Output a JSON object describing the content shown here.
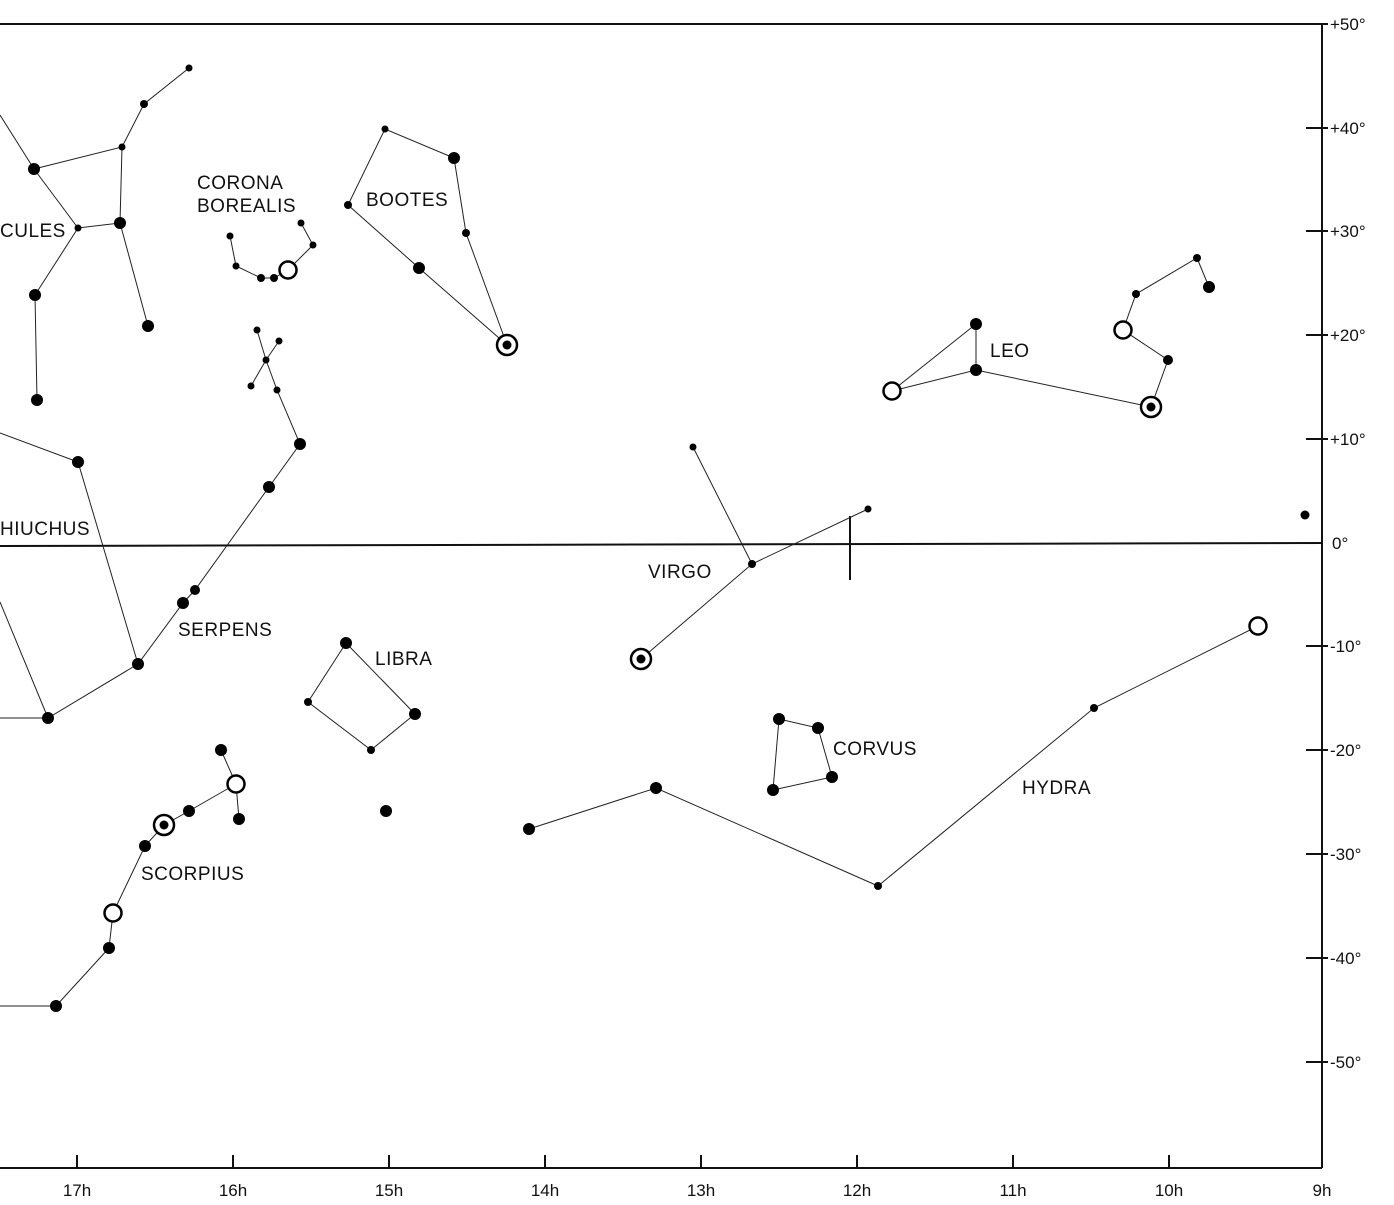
{
  "chart": {
    "ra_axis": {
      "labels": [
        "17h",
        "16h",
        "15h",
        "14h",
        "13h",
        "12h",
        "11h",
        "10h",
        "9h"
      ]
    },
    "dec_axis": {
      "labels": [
        "+50°",
        "+40°",
        "+30°",
        "+20°",
        "+10°",
        "0°",
        "-10°",
        "-20°",
        "-30°",
        "-40°",
        "-50°"
      ]
    }
  },
  "constellations": [
    {
      "name": "CULES"
    },
    {
      "name": "CORONA"
    },
    {
      "name": "BOREALIS"
    },
    {
      "name": "BOOTES"
    },
    {
      "name": "LEO"
    },
    {
      "name": "HIUCHUS"
    },
    {
      "name": "VIRGO"
    },
    {
      "name": "SERPENS"
    },
    {
      "name": "LIBRA"
    },
    {
      "name": "CORVUS"
    },
    {
      "name": "HYDRA"
    },
    {
      "name": "SCORPIUS"
    }
  ]
}
